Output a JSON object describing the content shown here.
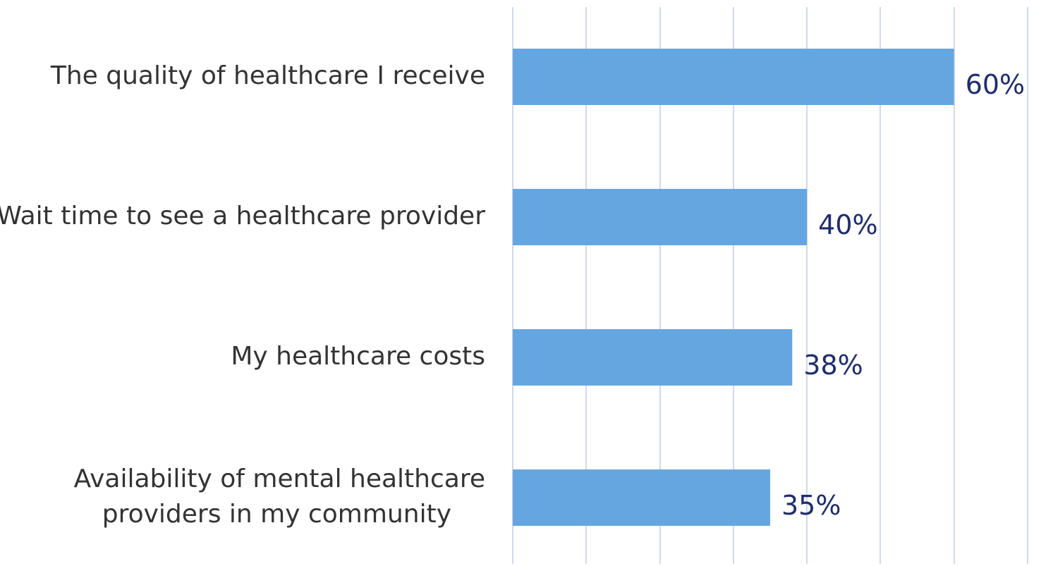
{
  "chart_data": {
    "type": "bar",
    "orientation": "horizontal",
    "categories": [
      "The quality of healthcare I receive",
      "Wait time to see a healthcare provider",
      "My healthcare costs",
      [
        "Availability of mental healthcare",
        "providers in my community"
      ]
    ],
    "values": [
      60,
      40,
      38,
      35
    ],
    "value_labels": [
      "60%",
      "40%",
      "38%",
      "35%"
    ],
    "xlim": [
      0,
      70
    ],
    "grid": true,
    "legend": "none",
    "title": "",
    "xlabel": "",
    "ylabel": "",
    "colors": {
      "bar": "#66a6e0",
      "value_label": "#1f2d6b",
      "category_label": "#333333",
      "gridline": "#d3d8ee"
    }
  }
}
